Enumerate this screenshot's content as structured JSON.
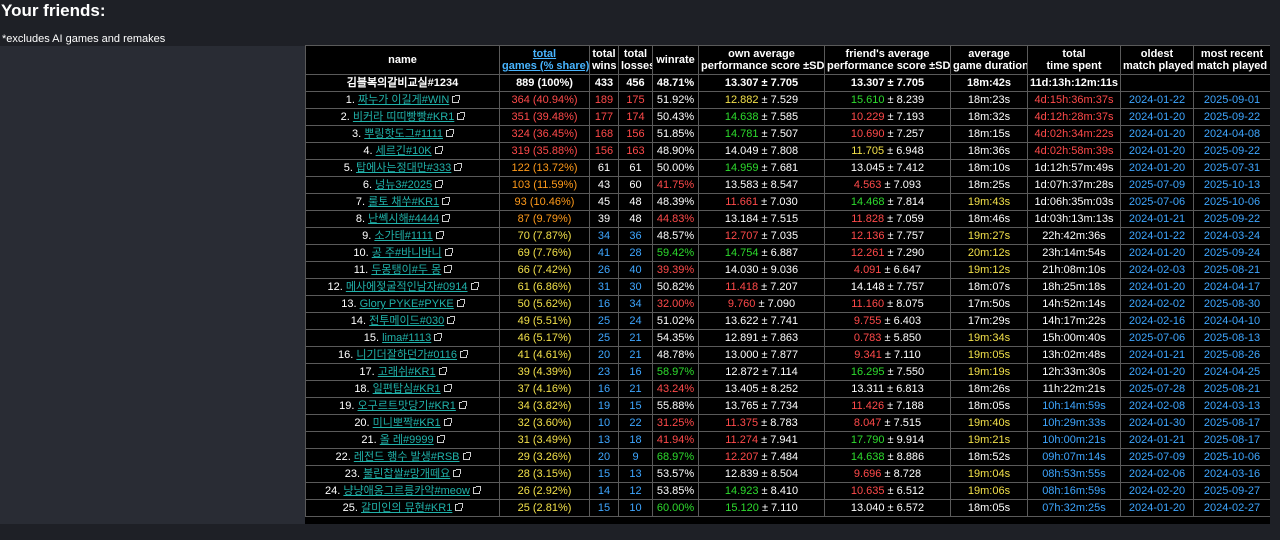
{
  "page": {
    "heading": "Your friends:",
    "note": "*excludes AI games and remakes"
  },
  "headers": [
    [
      "name",
      ""
    ],
    [
      "total",
      "games (% share)"
    ],
    [
      "total",
      "wins"
    ],
    [
      "total",
      "losses"
    ],
    [
      "winrate",
      ""
    ],
    [
      "own average",
      "performance score ±SD"
    ],
    [
      "friend's average",
      "performance score ±SD"
    ],
    [
      "average",
      "game duration"
    ],
    [
      "total",
      "time spent"
    ],
    [
      "oldest",
      "match played"
    ],
    [
      "most recent",
      "match played"
    ]
  ],
  "total_row": {
    "name": "김블복의갈비교실#1234",
    "games": "889 (100%)",
    "wins": "433",
    "losses": "456",
    "winrate": "48.71%",
    "own_avg": "13.307",
    "own_sd": "7.705",
    "friend_avg": "13.307",
    "friend_sd": "7.705",
    "duration": "18m:42s",
    "time_spent": "11d:13h:12m:11s",
    "oldest": "",
    "recent": ""
  },
  "rows": [
    {
      "idx": "1.",
      "name": "짜누가 이길게#WIN",
      "games": "364 (40.94%)",
      "wins": "189",
      "losses": "175",
      "winrate": "51.92%",
      "own_avg": "12.882",
      "own_sd": "7.529",
      "friend_avg": "15.610",
      "friend_sd": "8.239",
      "duration": "18m:23s",
      "time_spent": "4d:15h:36m:37s",
      "oldest": "2024-01-22",
      "recent": "2025-09-01",
      "c": {
        "games": "r",
        "wins": "r",
        "losses": "r",
        "winrate": "w",
        "own_avg": "y",
        "friend_avg": "g",
        "duration": "w",
        "time_spent": "r",
        "oldest": "b",
        "recent": "b"
      }
    },
    {
      "idx": "2.",
      "name": "비커라 띠띠빵빵#KR1",
      "games": "351 (39.48%)",
      "wins": "177",
      "losses": "174",
      "winrate": "50.43%",
      "own_avg": "14.638",
      "own_sd": "7.585",
      "friend_avg": "10.229",
      "friend_sd": "7.193",
      "duration": "18m:32s",
      "time_spent": "4d:12h:28m:37s",
      "oldest": "2024-01-20",
      "recent": "2025-09-22",
      "c": {
        "games": "r",
        "wins": "r",
        "losses": "r",
        "winrate": "w",
        "own_avg": "g",
        "friend_avg": "r",
        "duration": "w",
        "time_spent": "r",
        "oldest": "b",
        "recent": "b"
      }
    },
    {
      "idx": "3.",
      "name": "뿌링핫도그#1111",
      "games": "324 (36.45%)",
      "wins": "168",
      "losses": "156",
      "winrate": "51.85%",
      "own_avg": "14.781",
      "own_sd": "7.507",
      "friend_avg": "10.690",
      "friend_sd": "7.257",
      "duration": "18m:15s",
      "time_spent": "4d:02h:34m:22s",
      "oldest": "2024-01-20",
      "recent": "2024-04-08",
      "c": {
        "games": "r",
        "wins": "r",
        "losses": "r",
        "winrate": "w",
        "own_avg": "g",
        "friend_avg": "r",
        "duration": "w",
        "time_spent": "r",
        "oldest": "b",
        "recent": "b"
      }
    },
    {
      "idx": "4.",
      "name": "세르긴#10K",
      "games": "319 (35.88%)",
      "wins": "156",
      "losses": "163",
      "winrate": "48.90%",
      "own_avg": "14.049",
      "own_sd": "7.808",
      "friend_avg": "11.705",
      "friend_sd": "6.948",
      "duration": "18m:36s",
      "time_spent": "4d:02h:58m:39s",
      "oldest": "2024-01-20",
      "recent": "2025-09-22",
      "c": {
        "games": "r",
        "wins": "r",
        "losses": "r",
        "winrate": "w",
        "own_avg": "w",
        "friend_avg": "y",
        "duration": "w",
        "time_spent": "r",
        "oldest": "b",
        "recent": "b"
      }
    },
    {
      "idx": "5.",
      "name": "탑에사는정대만#333",
      "games": "122 (13.72%)",
      "wins": "61",
      "losses": "61",
      "winrate": "50.00%",
      "own_avg": "14.959",
      "own_sd": "7.681",
      "friend_avg": "13.045",
      "friend_sd": "7.412",
      "duration": "18m:10s",
      "time_spent": "1d:12h:57m:49s",
      "oldest": "2024-01-20",
      "recent": "2025-07-31",
      "c": {
        "games": "o",
        "wins": "w",
        "losses": "w",
        "winrate": "w",
        "own_avg": "g",
        "friend_avg": "w",
        "duration": "w",
        "time_spent": "w",
        "oldest": "b",
        "recent": "b"
      }
    },
    {
      "idx": "6.",
      "name": "넝뉴3#2025",
      "games": "103 (11.59%)",
      "wins": "43",
      "losses": "60",
      "winrate": "41.75%",
      "own_avg": "13.583",
      "own_sd": "8.547",
      "friend_avg": "4.563",
      "friend_sd": "7.093",
      "duration": "18m:25s",
      "time_spent": "1d:07h:37m:28s",
      "oldest": "2025-07-09",
      "recent": "2025-10-13",
      "c": {
        "games": "o",
        "wins": "w",
        "losses": "w",
        "winrate": "r",
        "own_avg": "w",
        "friend_avg": "r",
        "duration": "w",
        "time_spent": "w",
        "oldest": "b",
        "recent": "b"
      }
    },
    {
      "idx": "7.",
      "name": "룰토 채쑤#KR1",
      "games": "93 (10.46%)",
      "wins": "45",
      "losses": "48",
      "winrate": "48.39%",
      "own_avg": "11.661",
      "own_sd": "7.030",
      "friend_avg": "14.468",
      "friend_sd": "7.814",
      "duration": "19m:43s",
      "time_spent": "1d:06h:35m:03s",
      "oldest": "2025-07-06",
      "recent": "2025-10-06",
      "c": {
        "games": "o",
        "wins": "w",
        "losses": "w",
        "winrate": "w",
        "own_avg": "r",
        "friend_avg": "g",
        "duration": "y",
        "time_spent": "w",
        "oldest": "b",
        "recent": "b"
      }
    },
    {
      "idx": "8.",
      "name": "난쎅시해#4444",
      "games": "87 (9.79%)",
      "wins": "39",
      "losses": "48",
      "winrate": "44.83%",
      "own_avg": "13.184",
      "own_sd": "7.515",
      "friend_avg": "11.828",
      "friend_sd": "7.059",
      "duration": "18m:46s",
      "time_spent": "1d:03h:13m:13s",
      "oldest": "2024-01-21",
      "recent": "2025-09-22",
      "c": {
        "games": "o",
        "wins": "w",
        "losses": "w",
        "winrate": "r",
        "own_avg": "w",
        "friend_avg": "r",
        "duration": "w",
        "time_spent": "w",
        "oldest": "b",
        "recent": "b"
      }
    },
    {
      "idx": "9.",
      "name": "소가테#1111",
      "games": "70 (7.87%)",
      "wins": "34",
      "losses": "36",
      "winrate": "48.57%",
      "own_avg": "12.707",
      "own_sd": "7.035",
      "friend_avg": "12.136",
      "friend_sd": "7.757",
      "duration": "19m:27s",
      "time_spent": "22h:42m:36s",
      "oldest": "2024-01-22",
      "recent": "2024-03-24",
      "c": {
        "games": "y",
        "wins": "b",
        "losses": "b",
        "winrate": "w",
        "own_avg": "r",
        "friend_avg": "r",
        "duration": "y",
        "time_spent": "w",
        "oldest": "b",
        "recent": "b"
      }
    },
    {
      "idx": "10.",
      "name": "공 주#바니바니",
      "games": "69 (7.76%)",
      "wins": "41",
      "losses": "28",
      "winrate": "59.42%",
      "own_avg": "14.754",
      "own_sd": "6.887",
      "friend_avg": "12.261",
      "friend_sd": "7.290",
      "duration": "20m:12s",
      "time_spent": "23h:14m:54s",
      "oldest": "2024-01-20",
      "recent": "2025-09-24",
      "c": {
        "games": "y",
        "wins": "b",
        "losses": "b",
        "winrate": "g",
        "own_avg": "g",
        "friend_avg": "r",
        "duration": "y",
        "time_spent": "w",
        "oldest": "b",
        "recent": "b"
      }
    },
    {
      "idx": "11.",
      "name": "두몽탱이#두 몽",
      "games": "66 (7.42%)",
      "wins": "26",
      "losses": "40",
      "winrate": "39.39%",
      "own_avg": "14.030",
      "own_sd": "9.036",
      "friend_avg": "4.091",
      "friend_sd": "6.647",
      "duration": "19m:12s",
      "time_spent": "21h:08m:10s",
      "oldest": "2024-02-03",
      "recent": "2025-08-21",
      "c": {
        "games": "y",
        "wins": "b",
        "losses": "b",
        "winrate": "r",
        "own_avg": "w",
        "friend_avg": "r",
        "duration": "y",
        "time_spent": "w",
        "oldest": "b",
        "recent": "b"
      }
    },
    {
      "idx": "12.",
      "name": "메사에젖굴적인남자#0914",
      "games": "61 (6.86%)",
      "wins": "31",
      "losses": "30",
      "winrate": "50.82%",
      "own_avg": "11.418",
      "own_sd": "7.207",
      "friend_avg": "14.148",
      "friend_sd": "7.757",
      "duration": "18m:07s",
      "time_spent": "18h:25m:18s",
      "oldest": "2024-01-20",
      "recent": "2024-04-17",
      "c": {
        "games": "y",
        "wins": "b",
        "losses": "b",
        "winrate": "w",
        "own_avg": "r",
        "friend_avg": "w",
        "duration": "w",
        "time_spent": "w",
        "oldest": "b",
        "recent": "b"
      }
    },
    {
      "idx": "13.",
      "name": "Glory PYKE#PYKE",
      "games": "50 (5.62%)",
      "wins": "16",
      "losses": "34",
      "winrate": "32.00%",
      "own_avg": "9.760",
      "own_sd": "7.090",
      "friend_avg": "11.160",
      "friend_sd": "8.075",
      "duration": "17m:50s",
      "time_spent": "14h:52m:14s",
      "oldest": "2024-02-02",
      "recent": "2025-08-30",
      "c": {
        "games": "y",
        "wins": "b",
        "losses": "b",
        "winrate": "r",
        "own_avg": "r",
        "friend_avg": "r",
        "duration": "w",
        "time_spent": "w",
        "oldest": "b",
        "recent": "b"
      }
    },
    {
      "idx": "14.",
      "name": "전투메이드#030",
      "games": "49 (5.51%)",
      "wins": "25",
      "losses": "24",
      "winrate": "51.02%",
      "own_avg": "13.622",
      "own_sd": "7.741",
      "friend_avg": "9.755",
      "friend_sd": "6.403",
      "duration": "17m:29s",
      "time_spent": "14h:17m:22s",
      "oldest": "2024-02-16",
      "recent": "2024-04-10",
      "c": {
        "games": "y",
        "wins": "b",
        "losses": "b",
        "winrate": "w",
        "own_avg": "w",
        "friend_avg": "r",
        "duration": "w",
        "time_spent": "w",
        "oldest": "b",
        "recent": "b"
      }
    },
    {
      "idx": "15.",
      "name": "lima#1113",
      "games": "46 (5.17%)",
      "wins": "25",
      "losses": "21",
      "winrate": "54.35%",
      "own_avg": "12.891",
      "own_sd": "7.863",
      "friend_avg": "0.783",
      "friend_sd": "5.850",
      "duration": "19m:34s",
      "time_spent": "15h:00m:40s",
      "oldest": "2025-07-06",
      "recent": "2025-08-13",
      "c": {
        "games": "y",
        "wins": "b",
        "losses": "b",
        "winrate": "w",
        "own_avg": "w",
        "friend_avg": "r",
        "duration": "y",
        "time_spent": "w",
        "oldest": "b",
        "recent": "b"
      }
    },
    {
      "idx": "16.",
      "name": "니기더잘하던가#0116",
      "games": "41 (4.61%)",
      "wins": "20",
      "losses": "21",
      "winrate": "48.78%",
      "own_avg": "13.000",
      "own_sd": "7.877",
      "friend_avg": "9.341",
      "friend_sd": "7.110",
      "duration": "19m:05s",
      "time_spent": "13h:02m:48s",
      "oldest": "2024-01-21",
      "recent": "2025-08-26",
      "c": {
        "games": "y",
        "wins": "b",
        "losses": "b",
        "winrate": "w",
        "own_avg": "w",
        "friend_avg": "r",
        "duration": "y",
        "time_spent": "w",
        "oldest": "b",
        "recent": "b"
      }
    },
    {
      "idx": "17.",
      "name": "고래쉬#KR1",
      "games": "39 (4.39%)",
      "wins": "23",
      "losses": "16",
      "winrate": "58.97%",
      "own_avg": "12.872",
      "own_sd": "7.114",
      "friend_avg": "16.295",
      "friend_sd": "7.550",
      "duration": "19m:19s",
      "time_spent": "12h:33m:30s",
      "oldest": "2024-01-20",
      "recent": "2024-04-25",
      "c": {
        "games": "y",
        "wins": "b",
        "losses": "b",
        "winrate": "g",
        "own_avg": "w",
        "friend_avg": "g",
        "duration": "y",
        "time_spent": "w",
        "oldest": "b",
        "recent": "b"
      }
    },
    {
      "idx": "18.",
      "name": "일편탑심#KR1",
      "games": "37 (4.16%)",
      "wins": "16",
      "losses": "21",
      "winrate": "43.24%",
      "own_avg": "13.405",
      "own_sd": "8.252",
      "friend_avg": "13.311",
      "friend_sd": "6.813",
      "duration": "18m:26s",
      "time_spent": "11h:22m:21s",
      "oldest": "2025-07-28",
      "recent": "2025-08-21",
      "c": {
        "games": "y",
        "wins": "b",
        "losses": "b",
        "winrate": "r",
        "own_avg": "w",
        "friend_avg": "w",
        "duration": "w",
        "time_spent": "w",
        "oldest": "b",
        "recent": "b"
      }
    },
    {
      "idx": "19.",
      "name": "오구르트맛당기#KR1",
      "games": "34 (3.82%)",
      "wins": "19",
      "losses": "15",
      "winrate": "55.88%",
      "own_avg": "13.765",
      "own_sd": "7.734",
      "friend_avg": "11.426",
      "friend_sd": "7.188",
      "duration": "18m:05s",
      "time_spent": "10h:14m:59s",
      "oldest": "2024-02-08",
      "recent": "2024-03-13",
      "c": {
        "games": "y",
        "wins": "b",
        "losses": "b",
        "winrate": "w",
        "own_avg": "w",
        "friend_avg": "r",
        "duration": "w",
        "time_spent": "b",
        "oldest": "b",
        "recent": "b"
      }
    },
    {
      "idx": "20.",
      "name": "미니뽀짝#KR1",
      "games": "32 (3.60%)",
      "wins": "10",
      "losses": "22",
      "winrate": "31.25%",
      "own_avg": "11.375",
      "own_sd": "8.783",
      "friend_avg": "8.047",
      "friend_sd": "7.515",
      "duration": "19m:40s",
      "time_spent": "10h:29m:33s",
      "oldest": "2024-01-30",
      "recent": "2025-08-17",
      "c": {
        "games": "y",
        "wins": "b",
        "losses": "b",
        "winrate": "r",
        "own_avg": "r",
        "friend_avg": "r",
        "duration": "y",
        "time_spent": "b",
        "oldest": "b",
        "recent": "b"
      }
    },
    {
      "idx": "21.",
      "name": "올 레#9999",
      "games": "31 (3.49%)",
      "wins": "13",
      "losses": "18",
      "winrate": "41.94%",
      "own_avg": "11.274",
      "own_sd": "7.941",
      "friend_avg": "17.790",
      "friend_sd": "9.914",
      "duration": "19m:21s",
      "time_spent": "10h:00m:21s",
      "oldest": "2024-01-21",
      "recent": "2025-08-17",
      "c": {
        "games": "y",
        "wins": "b",
        "losses": "b",
        "winrate": "r",
        "own_avg": "r",
        "friend_avg": "g",
        "duration": "y",
        "time_spent": "b",
        "oldest": "b",
        "recent": "b"
      }
    },
    {
      "idx": "22.",
      "name": "레전드 행수 발생#RSB",
      "games": "29 (3.26%)",
      "wins": "20",
      "losses": "9",
      "winrate": "68.97%",
      "own_avg": "12.207",
      "own_sd": "7.484",
      "friend_avg": "14.638",
      "friend_sd": "8.886",
      "duration": "18m:52s",
      "time_spent": "09h:07m:14s",
      "oldest": "2025-07-09",
      "recent": "2025-10-06",
      "c": {
        "games": "y",
        "wins": "b",
        "losses": "b",
        "winrate": "g",
        "own_avg": "r",
        "friend_avg": "g",
        "duration": "w",
        "time_spent": "b",
        "oldest": "b",
        "recent": "b"
      }
    },
    {
      "idx": "23.",
      "name": "불린찹쌀#망개떼요",
      "games": "28 (3.15%)",
      "wins": "15",
      "losses": "13",
      "winrate": "53.57%",
      "own_avg": "12.839",
      "own_sd": "8.504",
      "friend_avg": "9.696",
      "friend_sd": "8.728",
      "duration": "19m:04s",
      "time_spent": "08h:53m:55s",
      "oldest": "2024-02-06",
      "recent": "2024-03-16",
      "c": {
        "games": "y",
        "wins": "b",
        "losses": "b",
        "winrate": "w",
        "own_avg": "w",
        "friend_avg": "r",
        "duration": "y",
        "time_spent": "b",
        "oldest": "b",
        "recent": "b"
      }
    },
    {
      "idx": "24.",
      "name": "냥냥애옹그르릉카악#meow",
      "games": "26 (2.92%)",
      "wins": "14",
      "losses": "12",
      "winrate": "53.85%",
      "own_avg": "14.923",
      "own_sd": "8.410",
      "friend_avg": "10.635",
      "friend_sd": "6.512",
      "duration": "19m:06s",
      "time_spent": "08h:16m:59s",
      "oldest": "2024-02-20",
      "recent": "2025-09-27",
      "c": {
        "games": "y",
        "wins": "b",
        "losses": "b",
        "winrate": "w",
        "own_avg": "g",
        "friend_avg": "r",
        "duration": "y",
        "time_spent": "b",
        "oldest": "b",
        "recent": "b"
      }
    },
    {
      "idx": "25.",
      "name": "갈미인의 뮤현#KR1",
      "games": "25 (2.81%)",
      "wins": "15",
      "losses": "10",
      "winrate": "60.00%",
      "own_avg": "15.120",
      "own_sd": "7.110",
      "friend_avg": "13.040",
      "friend_sd": "6.572",
      "duration": "18m:05s",
      "time_spent": "07h:32m:25s",
      "oldest": "2024-01-20",
      "recent": "2024-02-27",
      "c": {
        "games": "y",
        "wins": "b",
        "losses": "b",
        "winrate": "g",
        "own_avg": "g",
        "friend_avg": "w",
        "duration": "w",
        "time_spent": "b",
        "oldest": "b",
        "recent": "b"
      }
    }
  ]
}
